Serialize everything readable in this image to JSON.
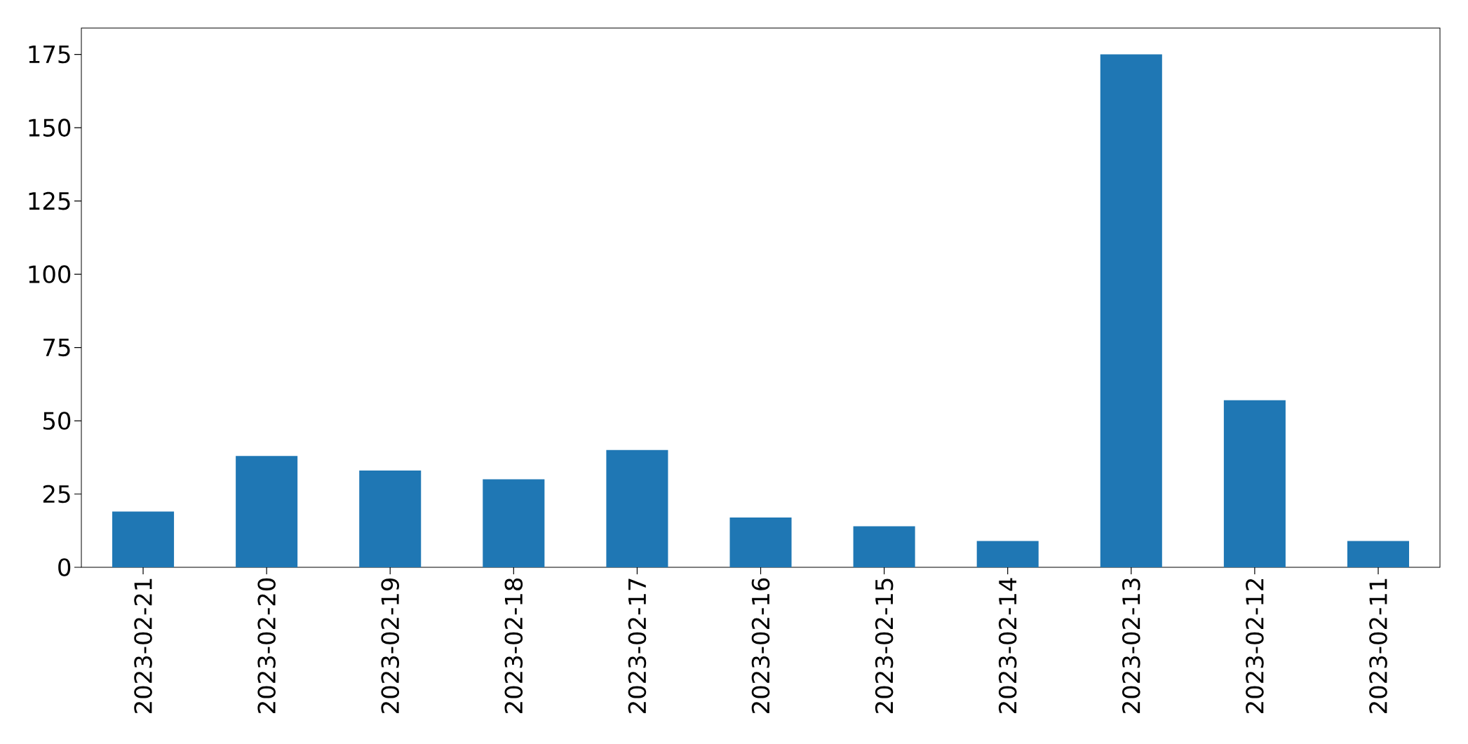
{
  "chart_data": {
    "type": "bar",
    "categories": [
      "2023-02-21",
      "2023-02-20",
      "2023-02-19",
      "2023-02-18",
      "2023-02-17",
      "2023-02-16",
      "2023-02-15",
      "2023-02-14",
      "2023-02-13",
      "2023-02-12",
      "2023-02-11"
    ],
    "values": [
      19,
      38,
      33,
      30,
      40,
      17,
      14,
      9,
      175,
      57,
      9
    ],
    "color": "#1f77b4",
    "ylim": [
      0,
      184
    ],
    "yticks": [
      0,
      25,
      50,
      75,
      100,
      125,
      150,
      175
    ],
    "grid": false
  }
}
